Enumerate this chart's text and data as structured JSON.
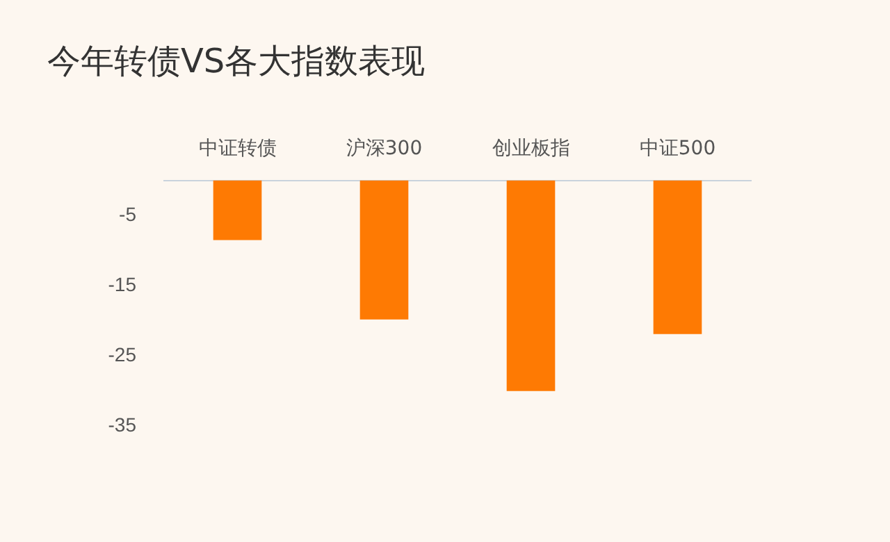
{
  "chart_data": {
    "type": "bar",
    "title": "今年转债VS各大指数表现",
    "categories": [
      "中证转债",
      "沪深300",
      "创业板指",
      "中证500"
    ],
    "values": [
      -8.5,
      -19.8,
      -30.0,
      -21.9
    ],
    "color": "#fe7a03",
    "ylim": [
      -35,
      0
    ],
    "yticks": [
      -5,
      -15,
      -25,
      -35
    ],
    "grid": false
  }
}
